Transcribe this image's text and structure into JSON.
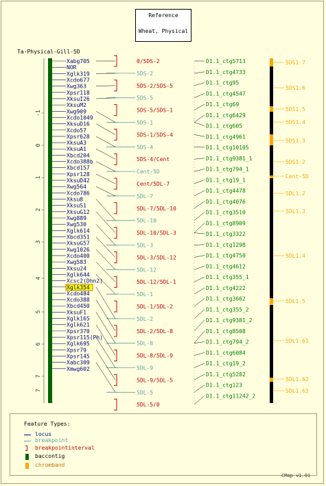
{
  "reference": {
    "title": "Reference",
    "subtitle": "Wheat, Physical"
  },
  "map_title": "Ta-Physical-Gill-5D",
  "version": "CMap v1.01",
  "colors": {
    "locus": "#000080",
    "breakpoint": "#5f9ea0",
    "interval": "#c00000",
    "contig": "#006400",
    "chromband": "#ffa500",
    "contigs": "#008000",
    "highlight": "#ffff00"
  },
  "scale_labels": [
    "-1",
    "0",
    "1",
    "2",
    "3",
    "4",
    "5",
    "6",
    "7"
  ],
  "loci": [
    "Xabg705",
    "NOR",
    "Xglk319",
    "Xcdo677",
    "Xwg363",
    "Xpsr118",
    "XksuI26",
    "XksuM2",
    "Xwg909",
    "Xcdo1049",
    "XksuD16",
    "Xcdo57",
    "Xpsr628",
    "XksuA3",
    "XksuA1",
    "Xbcd204",
    "Xcdo388b",
    "Xbcd157",
    "Xpsr128",
    "XksuD42",
    "Xwg564",
    "Xcdo786",
    "Xksu8",
    "XksuS1",
    "XksuG12",
    "Xwg889",
    "Xwg530",
    "Xglk614",
    "Xbcd351",
    "XksuG57",
    "Xwg1026",
    "Xcdo400",
    "Xwg583",
    "Xksu24",
    "Xglk644",
    "Xcsc2(Dhn2)",
    "Xglk354",
    "Xcdo484",
    "Xcdo388",
    "Xbcd450",
    "XksuF1",
    "Xglk165",
    "Xglk621",
    "Xpsr370",
    "Xpsr115(Ph)",
    "Xglk695",
    "Xpsr79",
    "Xpsr145",
    "Xabc309",
    "Xmwg602"
  ],
  "highlighted_locus": "Xglk354",
  "bins": [
    {
      "label": "0/5DS-2",
      "kind": "interval"
    },
    {
      "label": "5DS-2",
      "kind": "breakpoint"
    },
    {
      "label": "5DS-2/5DS-5",
      "kind": "interval"
    },
    {
      "label": "5DS-5",
      "kind": "breakpoint"
    },
    {
      "label": "5DS-5/5DS-1",
      "kind": "interval"
    },
    {
      "label": "5DS-1",
      "kind": "breakpoint"
    },
    {
      "label": "5DS-1/5DS-4",
      "kind": "interval"
    },
    {
      "label": "5DS-4",
      "kind": "breakpoint"
    },
    {
      "label": "5DS-4/Cent",
      "kind": "interval"
    },
    {
      "label": "Cent-5D",
      "kind": "breakpoint"
    },
    {
      "label": "Cent/5DL-7",
      "kind": "interval"
    },
    {
      "label": "5DL-7",
      "kind": "breakpoint"
    },
    {
      "label": "5DL-7/5DL-10",
      "kind": "interval"
    },
    {
      "label": "5DL-10",
      "kind": "breakpoint"
    },
    {
      "label": "5DL-10/5DL-3",
      "kind": "interval"
    },
    {
      "label": "5DL-3",
      "kind": "breakpoint"
    },
    {
      "label": "5DL-3/5DL-12",
      "kind": "interval"
    },
    {
      "label": "5DL-12",
      "kind": "breakpoint"
    },
    {
      "label": "5DL-12/5DL-1",
      "kind": "interval"
    },
    {
      "label": "5DL-1",
      "kind": "breakpoint"
    },
    {
      "label": "5DL-1/5DL-2",
      "kind": "interval"
    },
    {
      "label": "5DL-2",
      "kind": "breakpoint"
    },
    {
      "label": "5DL-2/5DL-8",
      "kind": "interval"
    },
    {
      "label": "5DL-8",
      "kind": "breakpoint"
    },
    {
      "label": "5DL-8/5DL-9",
      "kind": "interval"
    },
    {
      "label": "5DL-9",
      "kind": "breakpoint"
    },
    {
      "label": "5DL-9/5DL-5",
      "kind": "interval"
    },
    {
      "label": "5DL-5",
      "kind": "breakpoint"
    },
    {
      "label": "5DL-5/0",
      "kind": "interval"
    }
  ],
  "contigs": [
    "D1.1_ctg5713",
    "D1.1_ctg4733",
    "D1.1_ctg95",
    "D1.1_ctg4547",
    "D1.1_ctg69",
    "D1.1_ctg6429",
    "D1.1_ctg605",
    "D1.1_ctg4961",
    "D1.1_ctg10105",
    "D1.1_ctg9381_1",
    "D1.1_ctg794_1",
    "D1.1_ctg19_1",
    "D1.1_ctg4478",
    "D1.1_ctg4076",
    "D1.1_ctg3510",
    "D1.1_ctg8909",
    "D1.1_ctg3322",
    "D1.1_ctg1298",
    "D1.1_ctg4750",
    "D1.1_ctg4612",
    "D1.1_ctg355_1",
    "D1.1_ctg4222",
    "D1.1_ctg3662",
    "D1.1_ctg355_2",
    "D1.1_ctg9381_2",
    "D1.1_ctg8508",
    "D1.1_ctg794_2",
    "D1.1_ctg6084",
    "D1.1_ctg19_2",
    "D1.1_ctg5282",
    "D1.1_ctg123",
    "D1.1_ctg11242_2"
  ],
  "chrombands": [
    "5DS1.7",
    "5DS1.6",
    "5DS1.5",
    "5DS1.4",
    "5DS1.3",
    "5DS1.2",
    "Cent-5D",
    "5DL1.2",
    "5DL1.3",
    "5DL1.4",
    "5DL1.5",
    "5DL1.61",
    "5DL1.62",
    "5DL1.63"
  ],
  "legend": {
    "title": "Feature Types:",
    "items": [
      {
        "label": "locus",
        "symbol": "line",
        "color": "#000080"
      },
      {
        "label": "breakpoint",
        "symbol": "line",
        "color": "#5f9ea0"
      },
      {
        "label": "breakpointinterval",
        "symbol": "bracket",
        "color": "#c00000"
      },
      {
        "label": "baccontig",
        "symbol": "box",
        "color": "#006400"
      },
      {
        "label": "chromband",
        "symbol": "box",
        "color": "#ffa500"
      }
    ]
  }
}
